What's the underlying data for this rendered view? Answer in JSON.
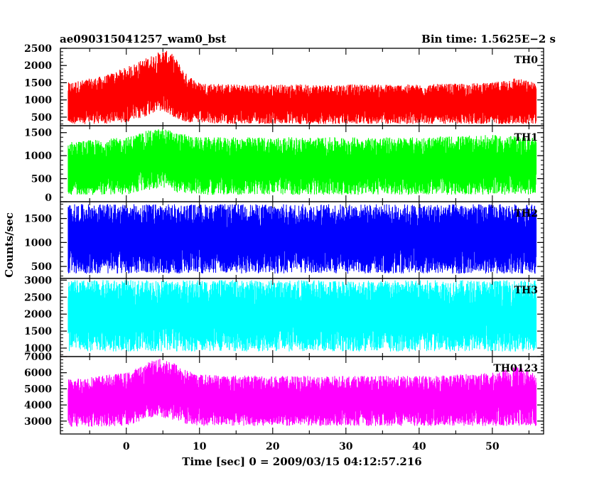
{
  "chart_data": {
    "type": "line",
    "title": "ae090315041257_wam0_bst",
    "subtitle": "Bin time: 1.5625E−2 s",
    "xlabel": "Time [sec] 0 = 2009/03/15 04:12:57.216",
    "ylabel": "Counts/sec",
    "xlim": [
      -9,
      57
    ],
    "x_ticks": [
      "0",
      "10",
      "20",
      "30",
      "40",
      "50"
    ],
    "x_tick_values": [
      0,
      10,
      20,
      30,
      40,
      50
    ],
    "x_data_range": [
      -8,
      56
    ],
    "grid": false,
    "panels": [
      {
        "name": "TH0",
        "color": "#ff0000",
        "ylim": [
          250,
          2500
        ],
        "y_ticks": [
          "2500",
          "2000",
          "1500",
          "1000",
          "500"
        ],
        "y_tick_values": [
          2500,
          2000,
          1500,
          1000,
          500
        ],
        "envelope": {
          "x": [
            -8,
            -3,
            0,
            2,
            4,
            5,
            6,
            7,
            8,
            10,
            15,
            20,
            30,
            40,
            50,
            53,
            56
          ],
          "low": [
            300,
            300,
            350,
            450,
            650,
            650,
            550,
            450,
            350,
            320,
            300,
            300,
            300,
            300,
            300,
            300,
            300
          ],
          "high": [
            1500,
            1700,
            1950,
            2150,
            2350,
            2450,
            2400,
            2150,
            1800,
            1500,
            1450,
            1450,
            1450,
            1450,
            1500,
            1650,
            1500
          ]
        }
      },
      {
        "name": "TH1",
        "color": "#00ff00",
        "ylim": [
          0,
          1650
        ],
        "y_ticks": [
          "1500",
          "1000",
          "500",
          "0"
        ],
        "y_tick_values": [
          1500,
          1000,
          500,
          0
        ],
        "envelope": {
          "x": [
            -8,
            0,
            3,
            5,
            7,
            10,
            20,
            30,
            40,
            50,
            56
          ],
          "low": [
            150,
            150,
            250,
            300,
            200,
            150,
            150,
            150,
            150,
            150,
            150
          ],
          "high": [
            1300,
            1400,
            1550,
            1600,
            1500,
            1400,
            1400,
            1400,
            1400,
            1450,
            1400
          ]
        }
      },
      {
        "name": "TH2",
        "color": "#0000ff",
        "ylim": [
          250,
          1850
        ],
        "y_ticks": [
          "1500",
          "1000",
          "500"
        ],
        "y_tick_values": [
          1500,
          1000,
          500
        ],
        "envelope": {
          "x": [
            -8,
            0,
            10,
            20,
            30,
            40,
            50,
            56
          ],
          "low": [
            350,
            350,
            350,
            350,
            350,
            350,
            350,
            350
          ],
          "high": [
            1800,
            1800,
            1800,
            1800,
            1800,
            1800,
            1800,
            1800
          ]
        }
      },
      {
        "name": "TH3",
        "color": "#00ffff",
        "ylim": [
          750,
          3050
        ],
        "y_ticks": [
          "3000",
          "2500",
          "2000",
          "1500",
          "1000"
        ],
        "y_tick_values": [
          3000,
          2500,
          2000,
          1500,
          1000
        ],
        "envelope": {
          "x": [
            -8,
            0,
            10,
            20,
            30,
            40,
            50,
            56
          ],
          "low": [
            900,
            900,
            900,
            900,
            900,
            900,
            900,
            900
          ],
          "high": [
            3000,
            3000,
            3000,
            3000,
            3000,
            3000,
            3000,
            3000
          ]
        }
      },
      {
        "name": "TH0123",
        "color": "#ff00ff",
        "ylim": [
          2200,
          7000
        ],
        "y_ticks": [
          "7000",
          "6000",
          "5000",
          "4000",
          "3000"
        ],
        "y_tick_values": [
          7000,
          6000,
          5000,
          4000,
          3000
        ],
        "envelope": {
          "x": [
            -8,
            0,
            2,
            4,
            6,
            8,
            10,
            20,
            30,
            40,
            50,
            53,
            56
          ],
          "low": [
            2600,
            2700,
            3000,
            3300,
            3100,
            2800,
            2700,
            2700,
            2700,
            2700,
            2700,
            2700,
            2700
          ],
          "high": [
            5600,
            6000,
            6400,
            6900,
            6800,
            6200,
            5900,
            5800,
            5800,
            5800,
            6000,
            6400,
            6000
          ]
        }
      }
    ]
  }
}
